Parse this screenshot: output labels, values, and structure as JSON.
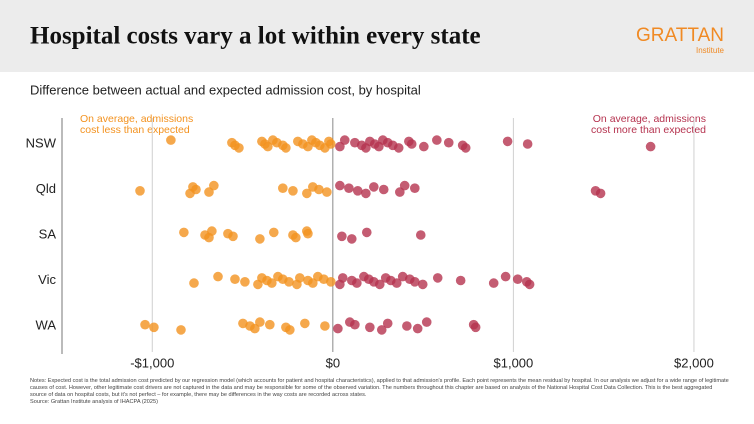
{
  "chart_data": {
    "type": "strip",
    "title": "Hospital costs vary a lot within every state",
    "logo": "GRATTAN",
    "logo_sub": "Institute",
    "subtitle": "Difference between actual and expected admission cost, by hospital",
    "annotation_left": "On average, admissions cost less than expected",
    "annotation_right": "On average, admissions cost more than expected",
    "categories": [
      "NSW",
      "Qld",
      "SA",
      "Vic",
      "WA"
    ],
    "values": [
      [
        -897,
        -559,
        -542,
        -520,
        -393,
        -376,
        -360,
        -332,
        -310,
        -277,
        -260,
        -194,
        -166,
        -138,
        -116,
        -94,
        -72,
        -44,
        -22,
        -11,
        39,
        66,
        122,
        160,
        183,
        205,
        232,
        255,
        277,
        304,
        332,
        365,
        421,
        437,
        504,
        576,
        642,
        719,
        736,
        968,
        1079,
        1760
      ],
      [
        -1068,
        -791,
        -775,
        -758,
        -686,
        -659,
        -277,
        -221,
        -144,
        -111,
        -77,
        -33,
        39,
        89,
        138,
        183,
        227,
        282,
        371,
        398,
        454,
        1455,
        1483
      ],
      [
        -825,
        -708,
        -686,
        -670,
        -581,
        -553,
        -404,
        -327,
        -221,
        -205,
        -144,
        -138,
        50,
        105,
        188,
        487
      ],
      [
        -769,
        -636,
        -542,
        -487,
        -415,
        -393,
        -365,
        -338,
        -304,
        -277,
        -243,
        -199,
        -183,
        -138,
        -111,
        -83,
        -50,
        -11,
        39,
        55,
        105,
        133,
        172,
        199,
        227,
        260,
        293,
        321,
        354,
        387,
        426,
        454,
        498,
        581,
        708,
        891,
        957,
        1024,
        1074,
        1090
      ],
      [
        -1040,
        -991,
        -841,
        -498,
        -459,
        -432,
        -404,
        -349,
        -260,
        -238,
        -155,
        -44,
        28,
        94,
        122,
        205,
        271,
        304,
        410,
        470,
        520,
        780,
        791
      ]
    ],
    "colors": [
      "#f3921f",
      "#b5334f"
    ],
    "xlim": [
      -1500,
      2100
    ],
    "xticks": [
      {
        "value": -1000,
        "label": "-$1,000"
      },
      {
        "value": 0,
        "label": "$0"
      },
      {
        "value": 1000,
        "label": "$1,000"
      },
      {
        "value": 2000,
        "label": "$2,000"
      }
    ],
    "grid": true,
    "notes": "Notes: Expected cost is the total admission cost predicted by our regression model (which accounts for patient and hospital characteristics), applied to that admission's profile. Each point represents the mean residual by hospital. In our analysis we adjust for a wide range of legitimate causes of cost. However, other legitimate cost drivers are not captured in the data and may be responsible for some of the observed variation. The numbers throughout this chapter are based on analysis of the National Hospital Cost Data Collection. This is the best aggregated source of data on hospital costs, but it's not perfect – for example, there may be differences in the way costs are recorded across states.",
    "source": "Source: Grattan Institute analysis of IHACPA (2025)"
  }
}
